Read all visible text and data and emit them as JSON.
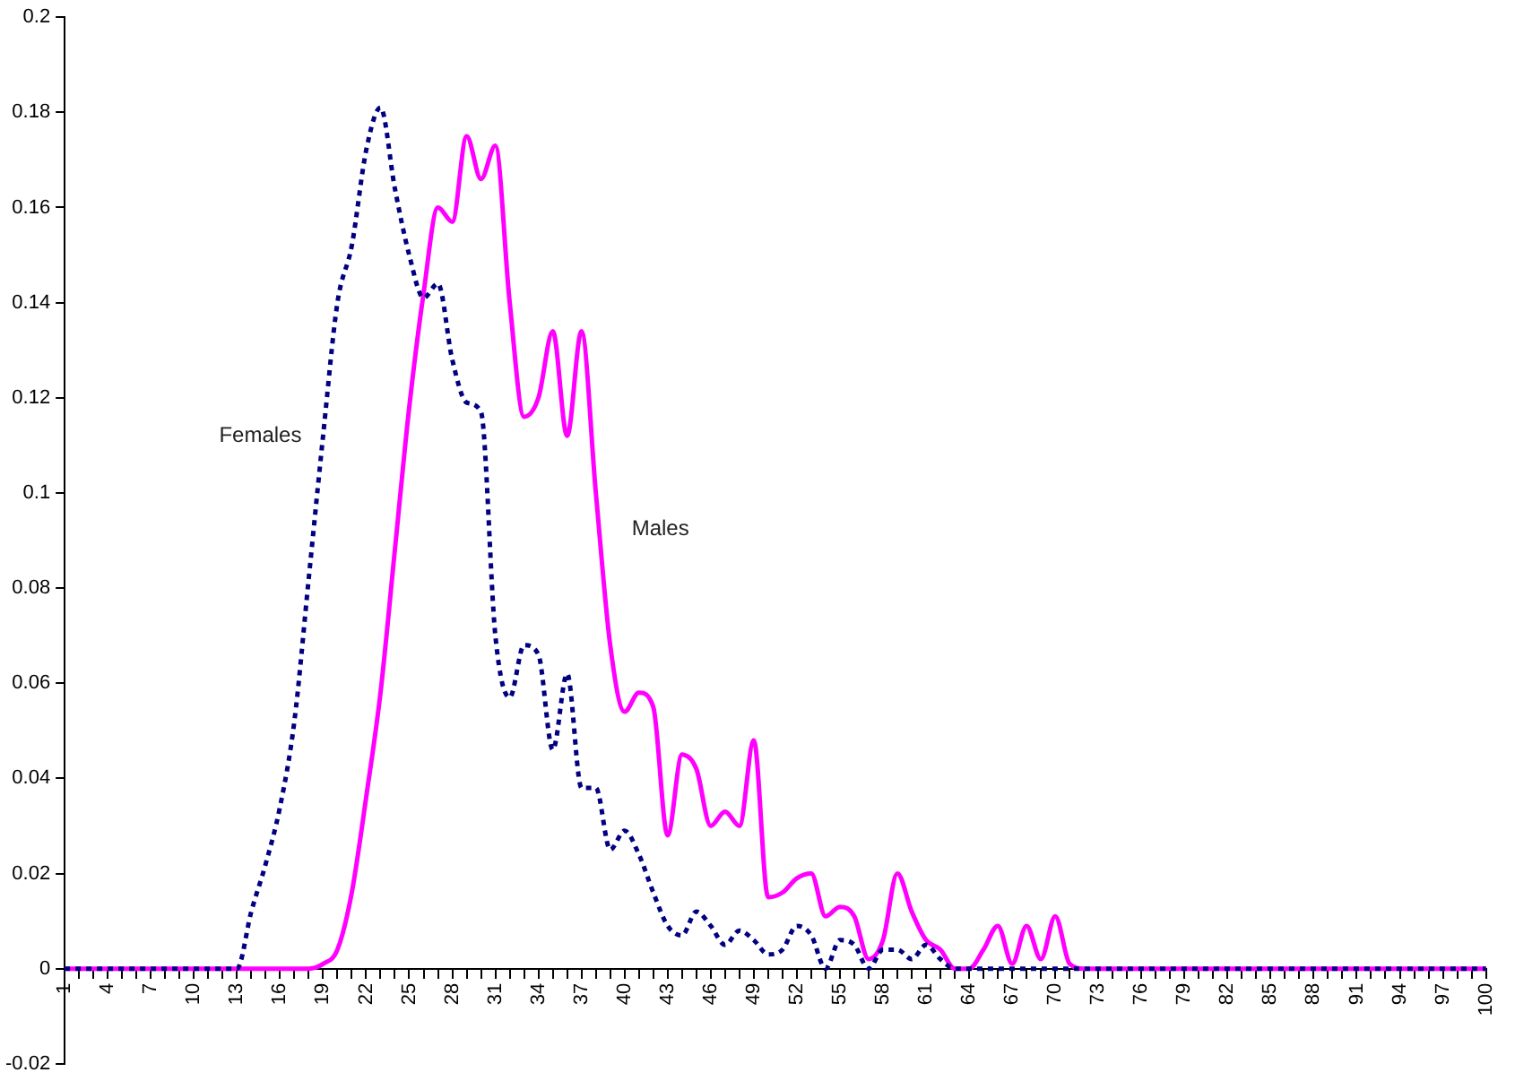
{
  "chart_data": {
    "type": "line",
    "categories": [
      "1",
      null,
      null,
      "4",
      null,
      null,
      "7",
      null,
      null,
      "10",
      null,
      null,
      "13",
      null,
      null,
      "16",
      null,
      null,
      "19",
      null,
      null,
      "22",
      null,
      null,
      "25",
      null,
      null,
      "28",
      null,
      null,
      "31",
      null,
      null,
      "34",
      null,
      null,
      "37",
      null,
      null,
      "40",
      null,
      null,
      "43",
      null,
      null,
      "46",
      null,
      null,
      "49",
      null,
      null,
      "52",
      null,
      null,
      "55",
      null,
      null,
      "58",
      null,
      null,
      "61",
      null,
      null,
      "64",
      null,
      null,
      "67",
      null,
      null,
      "70",
      null,
      null,
      "73",
      null,
      null,
      "76",
      null,
      null,
      "79",
      null,
      null,
      "82",
      null,
      null,
      "85",
      null,
      null,
      "88",
      null,
      null,
      "91",
      null,
      null,
      "94",
      null,
      null,
      "97",
      null,
      null,
      "100"
    ],
    "series": [
      {
        "name": "Females",
        "color": "#000080",
        "line_style": "dotted",
        "values": [
          0,
          0,
          0,
          0,
          0,
          0,
          0,
          0,
          0,
          0,
          0,
          0,
          0,
          0.012,
          0.022,
          0.034,
          0.052,
          0.082,
          0.112,
          0.14,
          0.152,
          0.172,
          0.181,
          0.164,
          0.15,
          0.141,
          0.144,
          0.128,
          0.119,
          0.117,
          0.07,
          0.057,
          0.068,
          0.066,
          0.046,
          0.062,
          0.038,
          0.038,
          0.025,
          0.029,
          0.024,
          0.016,
          0.009,
          0.007,
          0.012,
          0.009,
          0.005,
          0.008,
          0.006,
          0.003,
          0.004,
          0.009,
          0.007,
          0,
          0.006,
          0.005,
          0,
          0.004,
          0.004,
          0.002,
          0.005,
          0.002,
          0,
          0,
          0,
          0,
          0,
          0,
          0,
          0,
          0,
          0,
          0,
          0,
          0,
          0,
          0,
          0,
          0,
          0,
          0,
          0,
          0,
          0,
          0,
          0,
          0,
          0,
          0,
          0,
          0,
          0,
          0,
          0,
          0,
          0,
          0,
          0,
          0,
          0
        ]
      },
      {
        "name": "Males",
        "color": "#ff00ff",
        "line_style": "solid",
        "values": [
          0,
          0,
          0,
          0,
          0,
          0,
          0,
          0,
          0,
          0,
          0,
          0,
          0,
          0,
          0,
          0,
          0,
          0,
          0.001,
          0.004,
          0.016,
          0.036,
          0.058,
          0.088,
          0.118,
          0.142,
          0.16,
          0.157,
          0.175,
          0.166,
          0.173,
          0.14,
          0.116,
          0.12,
          0.134,
          0.112,
          0.134,
          0.1,
          0.068,
          0.054,
          0.058,
          0.055,
          0.028,
          0.045,
          0.042,
          0.03,
          0.033,
          0.03,
          0.048,
          0.015,
          0.016,
          0.019,
          0.02,
          0.011,
          0.013,
          0.011,
          0.002,
          0.006,
          0.02,
          0.012,
          0.006,
          0.004,
          0,
          0,
          0.004,
          0.009,
          0.001,
          0.009,
          0.002,
          0.011,
          0.001,
          0,
          0,
          0,
          0,
          0,
          0,
          0,
          0,
          0,
          0,
          0,
          0,
          0,
          0,
          0,
          0,
          0,
          0,
          0,
          0,
          0,
          0,
          0,
          0,
          0,
          0,
          0,
          0,
          0
        ]
      }
    ],
    "ylim": [
      -0.02,
      0.2
    ],
    "yticks": [
      -0.02,
      0,
      0.02,
      0.04,
      0.06,
      0.08,
      0.1,
      0.12,
      0.14,
      0.16,
      0.18,
      0.2
    ],
    "grid": false,
    "legend": false,
    "marker": "none"
  }
}
